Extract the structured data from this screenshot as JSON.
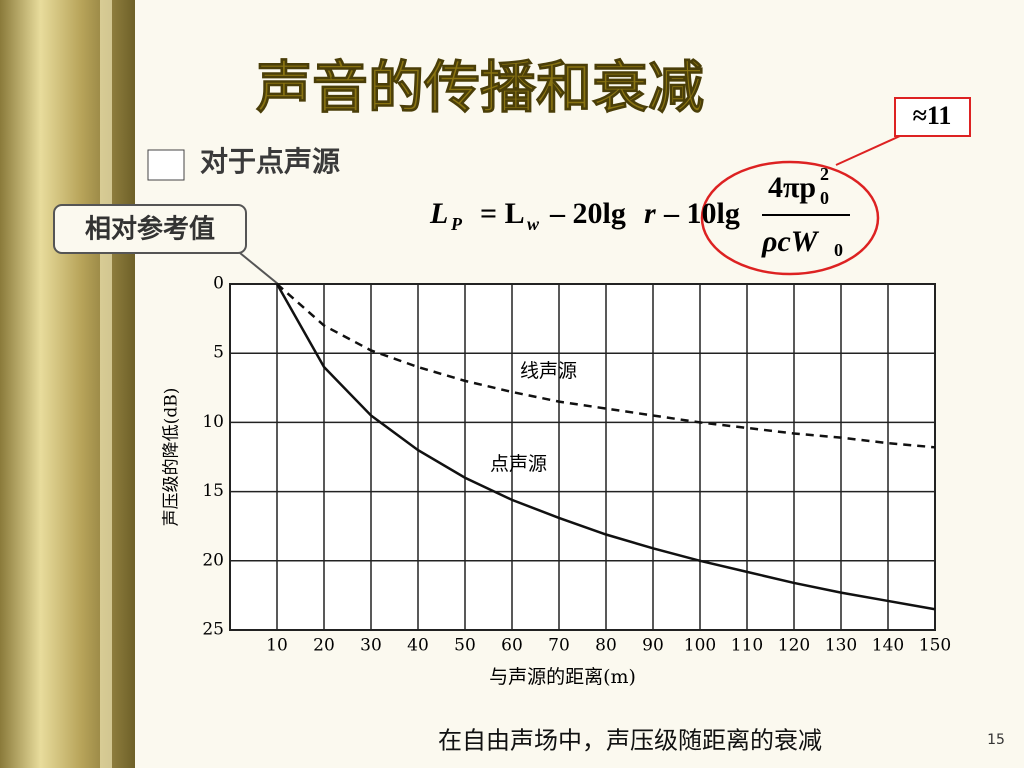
{
  "slide": {
    "title": "声音的传播和衰减",
    "bullet": "对于点声源",
    "callout_ref": "相对参考值",
    "callout_approx": "≈11",
    "formula": [
      "L",
      "P",
      "= L",
      "w",
      "– 20lg",
      "r",
      "– 10lg",
      "4πp",
      "0",
      "2",
      "ρcW",
      "0"
    ],
    "caption": "在自由声场中，声压级随距离的衰减",
    "page_number": "15"
  },
  "chart_data": {
    "type": "line",
    "x_label": "与声源的距离(m)",
    "y_label": "声压级的降低(dB)",
    "x": [
      10,
      20,
      30,
      40,
      50,
      60,
      70,
      80,
      90,
      100,
      110,
      120,
      130,
      140,
      150
    ],
    "series": [
      {
        "name": "线声源",
        "color": "#111111",
        "style": "dashed",
        "values": [
          0,
          3,
          4.8,
          6,
          7,
          7.8,
          8.5,
          9,
          9.5,
          10,
          10.4,
          10.8,
          11.1,
          11.5,
          11.8
        ]
      },
      {
        "name": "点声源",
        "color": "#111111",
        "style": "solid",
        "values": [
          0,
          6,
          9.5,
          12,
          14,
          15.6,
          16.9,
          18.1,
          19.1,
          20,
          20.8,
          21.6,
          22.3,
          22.9,
          23.5
        ]
      }
    ],
    "xlim": [
      0,
      150
    ],
    "xticks": [
      10,
      20,
      30,
      40,
      50,
      60,
      70,
      80,
      90,
      100,
      110,
      120,
      130,
      140,
      150
    ],
    "ylim": [
      0,
      25
    ],
    "yticks": [
      0,
      5,
      10,
      15,
      20,
      25
    ],
    "y_inverted": true,
    "grid": true
  }
}
